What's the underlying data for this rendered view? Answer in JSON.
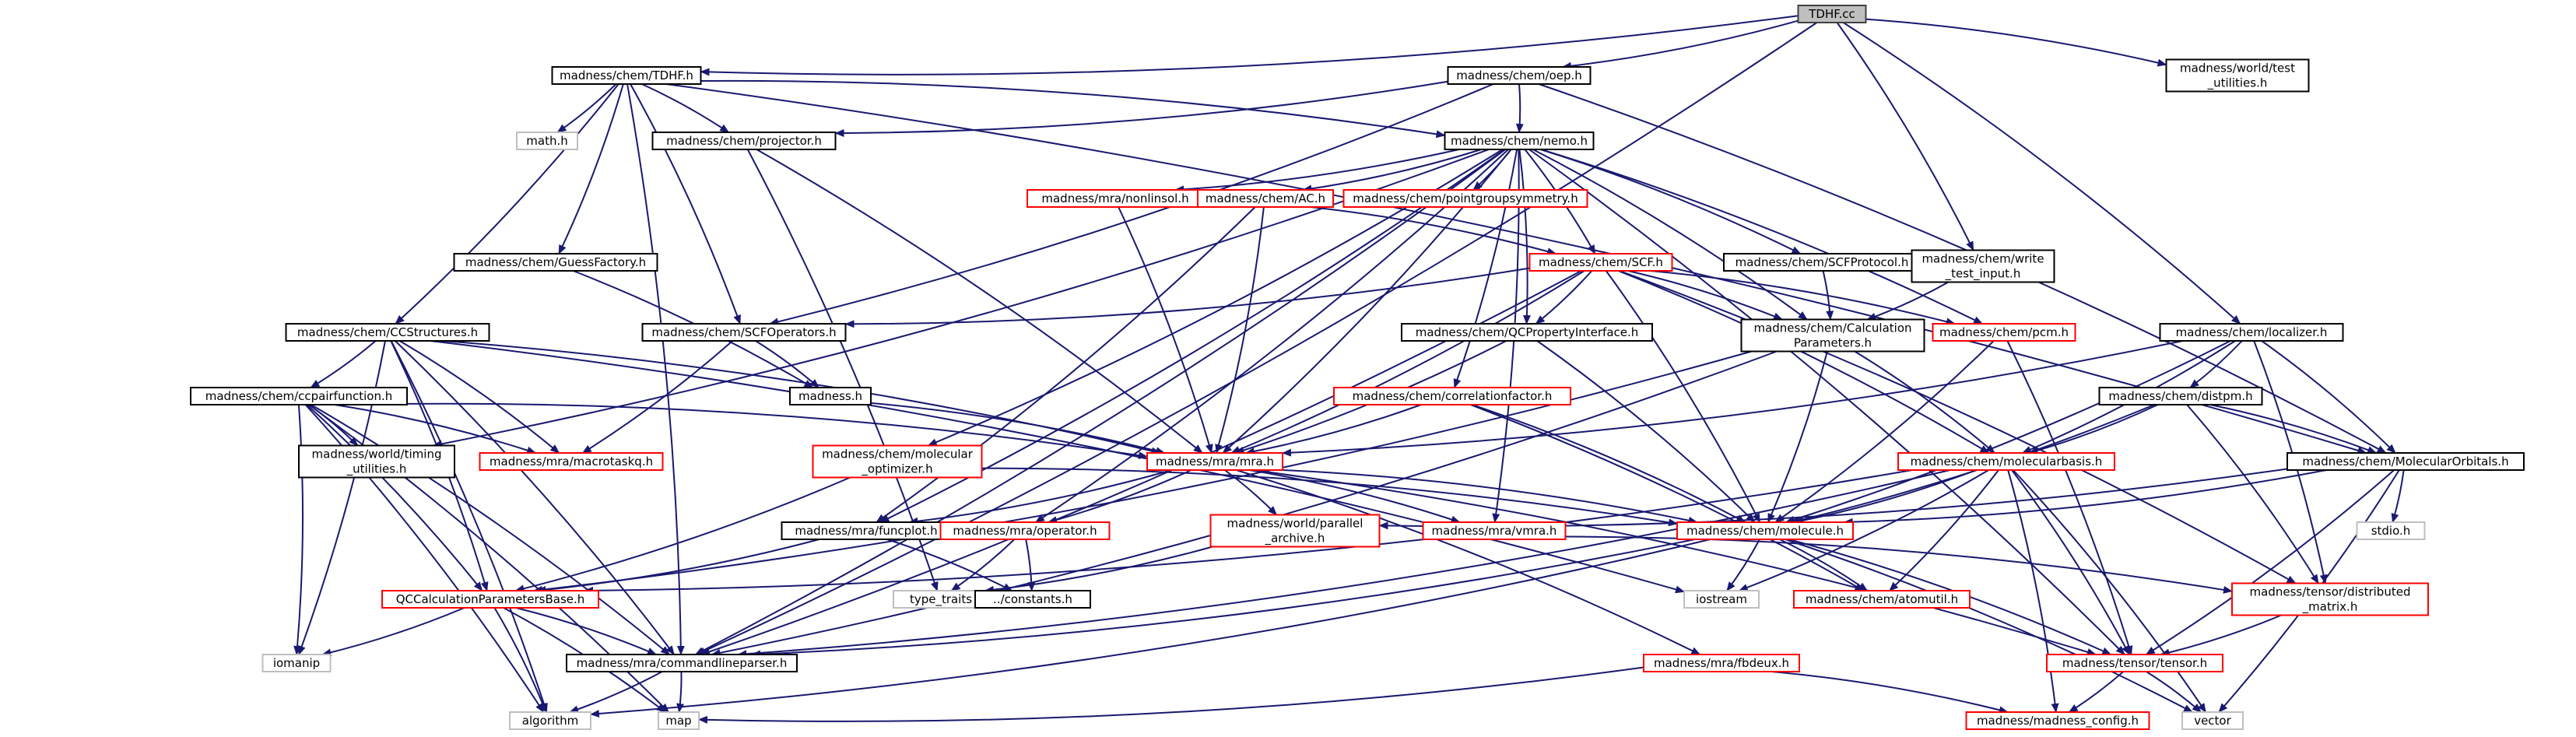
{
  "graph": {
    "nodes": [
      {
        "id": "tdhf_cc",
        "lines": [
          "TDHF.cc"
        ],
        "kind": "root"
      },
      {
        "id": "chem_tdhf_h",
        "lines": [
          "madness/chem/TDHF.h"
        ],
        "kind": "normal"
      },
      {
        "id": "chem_oep_h",
        "lines": [
          "madness/chem/oep.h"
        ],
        "kind": "normal"
      },
      {
        "id": "world_test_util",
        "lines": [
          "madness/world/test",
          "_utilities.h"
        ],
        "kind": "normal"
      },
      {
        "id": "math_h",
        "lines": [
          "math.h"
        ],
        "kind": "grey"
      },
      {
        "id": "projector_h",
        "lines": [
          "madness/chem/projector.h"
        ],
        "kind": "normal"
      },
      {
        "id": "nemo_h",
        "lines": [
          "madness/chem/nemo.h"
        ],
        "kind": "normal"
      },
      {
        "id": "nonlinsol_h",
        "lines": [
          "madness/mra/nonlinsol.h"
        ],
        "kind": "red"
      },
      {
        "id": "ac_h",
        "lines": [
          "madness/chem/AC.h"
        ],
        "kind": "red"
      },
      {
        "id": "pointgroup_h",
        "lines": [
          "madness/chem/pointgroupsymmetry.h"
        ],
        "kind": "red"
      },
      {
        "id": "guessfactory_h",
        "lines": [
          "madness/chem/GuessFactory.h"
        ],
        "kind": "normal"
      },
      {
        "id": "scf_h",
        "lines": [
          "madness/chem/SCF.h"
        ],
        "kind": "red"
      },
      {
        "id": "scfprotocol_h",
        "lines": [
          "madness/chem/SCFProtocol.h"
        ],
        "kind": "normal"
      },
      {
        "id": "write_test_input_h",
        "lines": [
          "madness/chem/write",
          "_test_input.h"
        ],
        "kind": "normal"
      },
      {
        "id": "ccstructures_h",
        "lines": [
          "madness/chem/CCStructures.h"
        ],
        "kind": "normal"
      },
      {
        "id": "scfoperators_h",
        "lines": [
          "madness/chem/SCFOperators.h"
        ],
        "kind": "normal"
      },
      {
        "id": "qcproperty_h",
        "lines": [
          "madness/chem/QCPropertyInterface.h"
        ],
        "kind": "normal"
      },
      {
        "id": "calcparams_h",
        "lines": [
          "madness/chem/Calculation",
          "Parameters.h"
        ],
        "kind": "normal"
      },
      {
        "id": "pcm_h",
        "lines": [
          "madness/chem/pcm.h"
        ],
        "kind": "red"
      },
      {
        "id": "localizer_h",
        "lines": [
          "madness/chem/localizer.h"
        ],
        "kind": "normal"
      },
      {
        "id": "ccpairfunction_h",
        "lines": [
          "madness/chem/ccpairfunction.h"
        ],
        "kind": "normal"
      },
      {
        "id": "madness_h",
        "lines": [
          "madness.h"
        ],
        "kind": "normal"
      },
      {
        "id": "corrfactor_h",
        "lines": [
          "madness/chem/correlationfactor.h"
        ],
        "kind": "red"
      },
      {
        "id": "distpm_h",
        "lines": [
          "madness/chem/distpm.h"
        ],
        "kind": "normal"
      },
      {
        "id": "world_timing_h",
        "lines": [
          "madness/world/timing",
          "_utilities.h"
        ],
        "kind": "normal"
      },
      {
        "id": "macrotaskq_h",
        "lines": [
          "madness/mra/macrotaskq.h"
        ],
        "kind": "red"
      },
      {
        "id": "mra_h",
        "lines": [
          "madness/mra/mra.h"
        ],
        "kind": "red"
      },
      {
        "id": "molopt_h",
        "lines": [
          "madness/chem/molecular",
          "_optimizer.h"
        ],
        "kind": "red"
      },
      {
        "id": "molbasis_h",
        "lines": [
          "madness/chem/molecularbasis.h"
        ],
        "kind": "red"
      },
      {
        "id": "molorbitals_h",
        "lines": [
          "madness/chem/MolecularOrbitals.h"
        ],
        "kind": "normal"
      },
      {
        "id": "funcplot_h",
        "lines": [
          "madness/mra/funcplot.h"
        ],
        "kind": "normal"
      },
      {
        "id": "operator_h",
        "lines": [
          "madness/mra/operator.h"
        ],
        "kind": "red"
      },
      {
        "id": "parallel_archive_h",
        "lines": [
          "madness/world/parallel",
          "_archive.h"
        ],
        "kind": "red"
      },
      {
        "id": "vmra_h",
        "lines": [
          "madness/mra/vmra.h"
        ],
        "kind": "red"
      },
      {
        "id": "molecule_h",
        "lines": [
          "madness/chem/molecule.h"
        ],
        "kind": "red"
      },
      {
        "id": "stdio_h",
        "lines": [
          "stdio.h"
        ],
        "kind": "grey"
      },
      {
        "id": "qccalc_h",
        "lines": [
          "QCCalculationParametersBase.h"
        ],
        "kind": "red"
      },
      {
        "id": "type_traits",
        "lines": [
          "type_traits"
        ],
        "kind": "grey"
      },
      {
        "id": "constants_h",
        "lines": [
          "../constants.h"
        ],
        "kind": "normal"
      },
      {
        "id": "iostream",
        "lines": [
          "iostream"
        ],
        "kind": "grey"
      },
      {
        "id": "atomutil_h",
        "lines": [
          "madness/chem/atomutil.h"
        ],
        "kind": "red"
      },
      {
        "id": "distributed_matrix_h",
        "lines": [
          "madness/tensor/distributed",
          "_matrix.h"
        ],
        "kind": "red"
      },
      {
        "id": "iomanip",
        "lines": [
          "iomanip"
        ],
        "kind": "grey"
      },
      {
        "id": "commandlineparser_h",
        "lines": [
          "madness/mra/commandlineparser.h"
        ],
        "kind": "normal"
      },
      {
        "id": "fbdeux_h",
        "lines": [
          "madness/mra/fbdeux.h"
        ],
        "kind": "red"
      },
      {
        "id": "tensor_h",
        "lines": [
          "madness/tensor/tensor.h"
        ],
        "kind": "red"
      },
      {
        "id": "algorithm",
        "lines": [
          "algorithm"
        ],
        "kind": "grey"
      },
      {
        "id": "map",
        "lines": [
          "map"
        ],
        "kind": "grey"
      },
      {
        "id": "madness_config_h",
        "lines": [
          "madness/madness_config.h"
        ],
        "kind": "red"
      },
      {
        "id": "vector",
        "lines": [
          "vector"
        ],
        "kind": "grey"
      }
    ],
    "edges": [
      [
        "tdhf_cc",
        "chem_tdhf_h"
      ],
      [
        "tdhf_cc",
        "chem_oep_h"
      ],
      [
        "tdhf_cc",
        "world_test_util"
      ],
      [
        "tdhf_cc",
        "write_test_input_h"
      ],
      [
        "tdhf_cc",
        "localizer_h"
      ],
      [
        "tdhf_cc",
        "commandlineparser_h"
      ],
      [
        "chem_tdhf_h",
        "math_h"
      ],
      [
        "chem_tdhf_h",
        "projector_h"
      ],
      [
        "chem_tdhf_h",
        "nemo_h"
      ],
      [
        "chem_tdhf_h",
        "guessfactory_h"
      ],
      [
        "chem_tdhf_h",
        "ccstructures_h"
      ],
      [
        "chem_tdhf_h",
        "scfoperators_h"
      ],
      [
        "chem_tdhf_h",
        "molorbitals_h"
      ],
      [
        "chem_tdhf_h",
        "commandlineparser_h"
      ],
      [
        "chem_oep_h",
        "nemo_h"
      ],
      [
        "chem_oep_h",
        "projector_h"
      ],
      [
        "chem_oep_h",
        "scfoperators_h"
      ],
      [
        "chem_oep_h",
        "molorbitals_h"
      ],
      [
        "projector_h",
        "mra_h"
      ],
      [
        "projector_h",
        "type_traits"
      ],
      [
        "nemo_h",
        "nonlinsol_h"
      ],
      [
        "nemo_h",
        "ac_h"
      ],
      [
        "nemo_h",
        "pointgroup_h"
      ],
      [
        "nemo_h",
        "scf_h"
      ],
      [
        "nemo_h",
        "scfprotocol_h"
      ],
      [
        "nemo_h",
        "calcparams_h"
      ],
      [
        "nemo_h",
        "pcm_h"
      ],
      [
        "nemo_h",
        "qcproperty_h"
      ],
      [
        "nemo_h",
        "corrfactor_h"
      ],
      [
        "nemo_h",
        "molopt_h"
      ],
      [
        "nemo_h",
        "operator_h"
      ],
      [
        "nemo_h",
        "mra_h"
      ],
      [
        "nemo_h",
        "funcplot_h"
      ],
      [
        "nemo_h",
        "world_timing_h"
      ],
      [
        "nemo_h",
        "commandlineparser_h"
      ],
      [
        "nemo_h",
        "vmra_h"
      ],
      [
        "nemo_h",
        "tensor_h"
      ],
      [
        "nonlinsol_h",
        "mra_h"
      ],
      [
        "ac_h",
        "scf_h"
      ],
      [
        "ac_h",
        "mra_h"
      ],
      [
        "ac_h",
        "funcplot_h"
      ],
      [
        "guessfactory_h",
        "madness_h"
      ],
      [
        "scf_h",
        "scfoperators_h"
      ],
      [
        "scf_h",
        "qcproperty_h"
      ],
      [
        "scf_h",
        "calcparams_h"
      ],
      [
        "scf_h",
        "pcm_h"
      ],
      [
        "scf_h",
        "mra_h"
      ],
      [
        "scf_h",
        "molbasis_h"
      ],
      [
        "scf_h",
        "molecule_h"
      ],
      [
        "scf_h",
        "distributed_matrix_h"
      ],
      [
        "scf_h",
        "commandlineparser_h"
      ],
      [
        "scfprotocol_h",
        "calcparams_h"
      ],
      [
        "write_test_input_h",
        "calcparams_h"
      ],
      [
        "ccstructures_h",
        "ccpairfunction_h"
      ],
      [
        "ccstructures_h",
        "macrotaskq_h"
      ],
      [
        "ccstructures_h",
        "mra_h"
      ],
      [
        "ccstructures_h",
        "qccalc_h"
      ],
      [
        "ccstructures_h",
        "iomanip"
      ],
      [
        "ccstructures_h",
        "commandlineparser_h"
      ],
      [
        "ccstructures_h",
        "algorithm"
      ],
      [
        "ccstructures_h",
        "iostream"
      ],
      [
        "scfoperators_h",
        "madness_h"
      ],
      [
        "scfoperators_h",
        "macrotaskq_h"
      ],
      [
        "qcproperty_h",
        "mra_h"
      ],
      [
        "qcproperty_h",
        "molecule_h"
      ],
      [
        "calcparams_h",
        "molbasis_h"
      ],
      [
        "calcparams_h",
        "molecule_h"
      ],
      [
        "calcparams_h",
        "qccalc_h"
      ],
      [
        "calcparams_h",
        "commandlineparser_h"
      ],
      [
        "pcm_h",
        "molecule_h"
      ],
      [
        "pcm_h",
        "tensor_h"
      ],
      [
        "localizer_h",
        "distpm_h"
      ],
      [
        "localizer_h",
        "molorbitals_h"
      ],
      [
        "localizer_h",
        "molbasis_h"
      ],
      [
        "localizer_h",
        "mra_h"
      ],
      [
        "localizer_h",
        "distributed_matrix_h"
      ],
      [
        "localizer_h",
        "molecule_h"
      ],
      [
        "ccpairfunction_h",
        "mra_h"
      ],
      [
        "ccpairfunction_h",
        "world_timing_h"
      ],
      [
        "ccpairfunction_h",
        "macrotaskq_h"
      ],
      [
        "ccpairfunction_h",
        "qccalc_h"
      ],
      [
        "ccpairfunction_h",
        "commandlineparser_h"
      ],
      [
        "ccpairfunction_h",
        "iomanip"
      ],
      [
        "ccpairfunction_h",
        "algorithm"
      ],
      [
        "ccpairfunction_h",
        "map"
      ],
      [
        "madness_h",
        "mra_h"
      ],
      [
        "corrfactor_h",
        "mra_h"
      ],
      [
        "corrfactor_h",
        "molecule_h"
      ],
      [
        "corrfactor_h",
        "atomutil_h"
      ],
      [
        "distpm_h",
        "molbasis_h"
      ],
      [
        "distpm_h",
        "molorbitals_h"
      ],
      [
        "distpm_h",
        "distributed_matrix_h"
      ],
      [
        "distpm_h",
        "molecule_h"
      ],
      [
        "mra_h",
        "funcplot_h"
      ],
      [
        "mra_h",
        "operator_h"
      ],
      [
        "mra_h",
        "parallel_archive_h"
      ],
      [
        "mra_h",
        "vmra_h"
      ],
      [
        "mra_h",
        "fbdeux_h"
      ],
      [
        "mra_h",
        "tensor_h"
      ],
      [
        "mra_h",
        "molecule_h"
      ],
      [
        "molopt_h",
        "molecule_h"
      ],
      [
        "molopt_h",
        "qccalc_h"
      ],
      [
        "molbasis_h",
        "molecule_h"
      ],
      [
        "molbasis_h",
        "tensor_h"
      ],
      [
        "molbasis_h",
        "atomutil_h"
      ],
      [
        "molbasis_h",
        "iostream"
      ],
      [
        "molbasis_h",
        "vector"
      ],
      [
        "molbasis_h",
        "madness_config_h"
      ],
      [
        "molbasis_h",
        "commandlineparser_h"
      ],
      [
        "molbasis_h",
        "qccalc_h"
      ],
      [
        "molorbitals_h",
        "stdio_h"
      ],
      [
        "molorbitals_h",
        "tensor_h"
      ],
      [
        "molorbitals_h",
        "vector"
      ],
      [
        "molorbitals_h",
        "molecule_h"
      ],
      [
        "molorbitals_h",
        "parallel_archive_h"
      ],
      [
        "funcplot_h",
        "qccalc_h"
      ],
      [
        "funcplot_h",
        "constants_h"
      ],
      [
        "operator_h",
        "type_traits"
      ],
      [
        "operator_h",
        "constants_h"
      ],
      [
        "parallel_archive_h",
        "type_traits"
      ],
      [
        "vmra_h",
        "distributed_matrix_h"
      ],
      [
        "molecule_h",
        "iostream"
      ],
      [
        "molecule_h",
        "atomutil_h"
      ],
      [
        "molecule_h",
        "tensor_h"
      ],
      [
        "molecule_h",
        "commandlineparser_h"
      ],
      [
        "molecule_h",
        "algorithm"
      ],
      [
        "molecule_h",
        "vector"
      ],
      [
        "qccalc_h",
        "commandlineparser_h"
      ],
      [
        "qccalc_h",
        "iomanip"
      ],
      [
        "qccalc_h",
        "algorithm"
      ],
      [
        "qccalc_h",
        "map"
      ],
      [
        "distributed_matrix_h",
        "tensor_h"
      ],
      [
        "commandlineparser_h",
        "algorithm"
      ],
      [
        "commandlineparser_h",
        "map"
      ],
      [
        "fbdeux_h",
        "madness_config_h"
      ],
      [
        "fbdeux_h",
        "map"
      ],
      [
        "tensor_h",
        "madness_config_h"
      ],
      [
        "tensor_h",
        "vector"
      ]
    ]
  }
}
